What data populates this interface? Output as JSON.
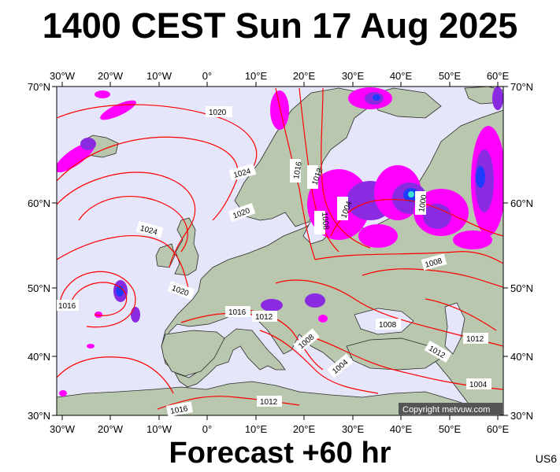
{
  "header": {
    "title": "1400 CEST Sun 17 Aug 2025"
  },
  "footer": {
    "forecast": "Forecast +60 hr",
    "code": "US6"
  },
  "map": {
    "top_lon_labels": [
      "30°W",
      "20°W",
      "10°W",
      "0°",
      "10°E",
      "20°E",
      "30°E",
      "40°E",
      "50°E",
      "60°E"
    ],
    "bottom_lon_labels": [
      "30°W",
      "20°W",
      "10°W",
      "0°",
      "10°E",
      "20°E",
      "30°E",
      "40°E",
      "50°E",
      "60°E"
    ],
    "left_lat_labels": [
      "70°N",
      "60°N",
      "50°N",
      "40°N",
      "30°N"
    ],
    "right_lat_labels": [
      "70°N",
      "60°N",
      "50°N",
      "40°N",
      "30°N"
    ],
    "isobar_labels": [
      "1020",
      "1024",
      "1016",
      "1012",
      "1024",
      "1020",
      "1004",
      "1000",
      "1008",
      "1024",
      "1020",
      "1016",
      "1016",
      "1012",
      "1008",
      "1008",
      "1012",
      "1012",
      "1004",
      "1004",
      "1016",
      "1012"
    ],
    "copyright": "Copyright metvuw.com",
    "colors": {
      "ocean": "#e6e6fa",
      "land": "#b8c7ad",
      "isobar": "#ff0000",
      "rain_magenta": "#ff00ff",
      "rain_purple": "#8a2be2",
      "rain_blue": "#1e3cff"
    }
  }
}
